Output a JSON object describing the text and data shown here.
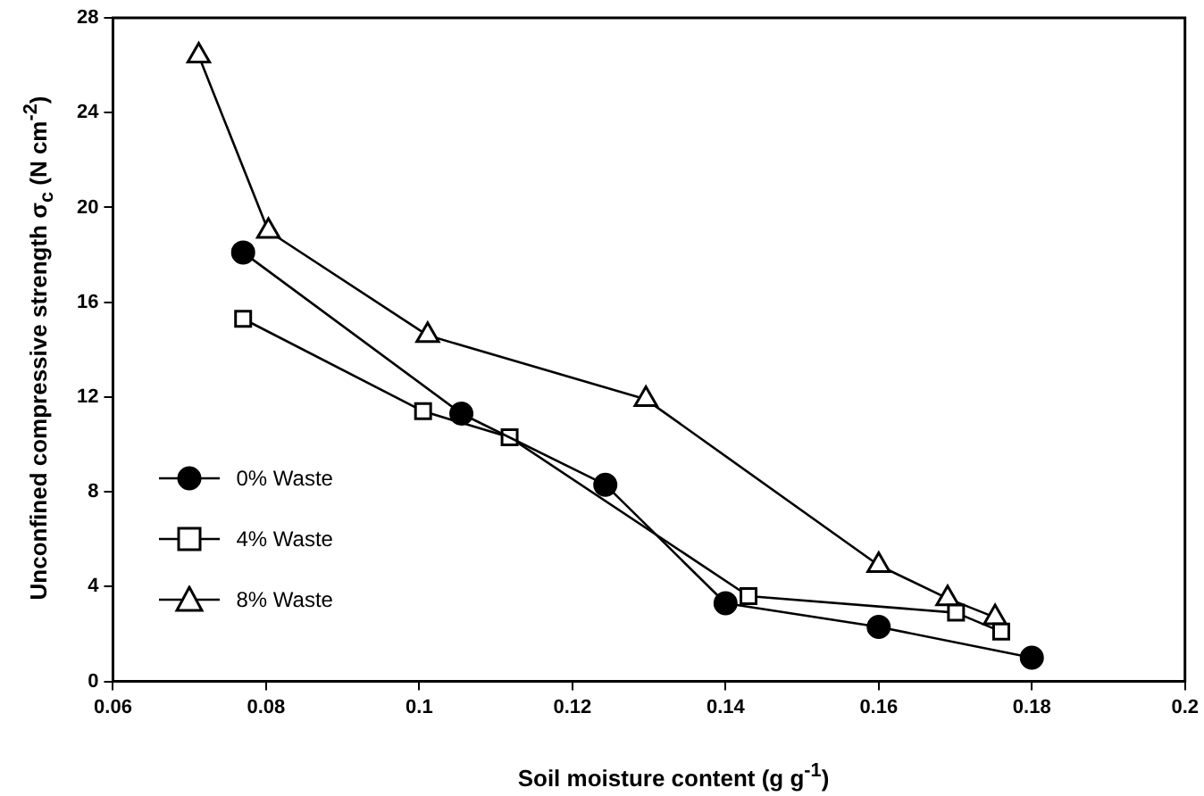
{
  "chart_data": {
    "type": "line",
    "xlabel": "Soil moisture content (g g$^{-1}$)",
    "ylabel": "Unconfined compressive strength σ$_{c}$ (N cm$^{-2}$)",
    "xlim": [
      0.06,
      0.2
    ],
    "xticks": [
      0.06,
      0.08,
      0.1,
      0.12,
      0.14,
      0.16,
      0.18,
      0.2
    ],
    "ylim": [
      0,
      28
    ],
    "yticks": [
      0,
      4,
      8,
      12,
      16,
      20,
      24,
      28
    ],
    "grid": false,
    "legend": "left",
    "line_style": "solid",
    "series": [
      {
        "name": "0% Waste",
        "color": "#000000",
        "marker": "circle",
        "x": [
          0.077,
          0.1055,
          0.1243,
          0.14,
          0.16,
          0.18
        ],
        "values": [
          18.1,
          11.3,
          8.3,
          3.3,
          2.3,
          1.0
        ]
      },
      {
        "name": "4% Waste",
        "color": "#000000",
        "marker": "square",
        "x": [
          0.077,
          0.1005,
          0.1118,
          0.143,
          0.1701,
          0.176
        ],
        "values": [
          15.3,
          11.4,
          10.3,
          3.6,
          2.9,
          2.1
        ]
      },
      {
        "name": "8% Waste",
        "color": "#000000",
        "marker": "triangle",
        "x": [
          0.0712,
          0.0803,
          0.1011,
          0.1296,
          0.16,
          0.169,
          0.1752
        ],
        "values": [
          26.4,
          19.0,
          14.6,
          11.9,
          4.9,
          3.5,
          2.7
        ]
      }
    ]
  }
}
